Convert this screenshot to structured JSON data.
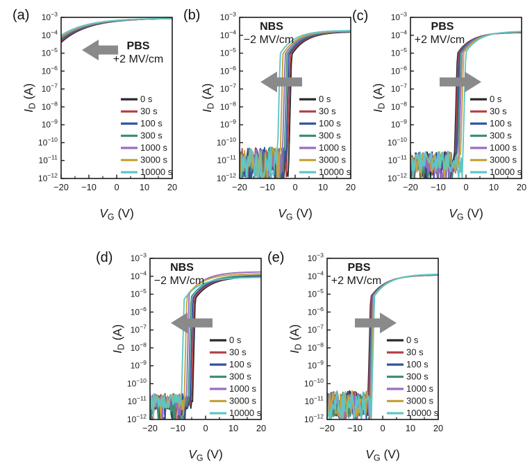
{
  "figure": {
    "background": "#ffffff",
    "text_color": "#1a1a1a",
    "arrow_color": "#8a8a8a"
  },
  "legend": {
    "position": "lower-right-inside",
    "entries": [
      {
        "label": "0 s",
        "color": "#2a2a2a"
      },
      {
        "label": "30 s",
        "color": "#b5434a"
      },
      {
        "label": "100 s",
        "color": "#30519f"
      },
      {
        "label": "300 s",
        "color": "#3f8e74"
      },
      {
        "label": "1000 s",
        "color": "#9a6cc0"
      },
      {
        "label": "3000 s",
        "color": "#c4a33c"
      },
      {
        "label": "10000 s",
        "color": "#5fc6c5"
      }
    ]
  },
  "axes": {
    "x_title": {
      "variable": "V",
      "subscript": "G",
      "unit": " (V)"
    },
    "y_title": {
      "variable": "I",
      "subscript": "D",
      "unit": " (A)"
    },
    "x_range": [
      -20,
      20
    ],
    "x_major_ticks": [
      -20,
      -10,
      0,
      10,
      20
    ],
    "x_minor_ticks": [
      -15,
      -5,
      5,
      15
    ],
    "y_scale": "log10",
    "y_log10_range": [
      -12,
      -3
    ],
    "y_tick_exponents": [
      -3,
      -4,
      -5,
      -6,
      -7,
      -8,
      -9,
      -10,
      -11,
      -12
    ]
  },
  "chart_data": [
    {
      "panel_label": "(a)",
      "type": "line",
      "stress_condition": {
        "line1": "PBS",
        "line2": "+2 MV/cm"
      },
      "shift_arrow_direction": "left",
      "curve_model": {
        "kind": "depletion",
        "decay_tau_V": 9.5
      },
      "series": [
        {
          "name": "0 s",
          "color": "#2a2a2a",
          "on_log10": -3.05,
          "decay_amp": 1.35
        },
        {
          "name": "30 s",
          "color": "#b5434a",
          "on_log10": -3.05,
          "decay_amp": 1.28
        },
        {
          "name": "100 s",
          "color": "#30519f",
          "on_log10": -3.05,
          "decay_amp": 1.22
        },
        {
          "name": "300 s",
          "color": "#3f8e74",
          "on_log10": -3.05,
          "decay_amp": 1.15
        },
        {
          "name": "1000 s",
          "color": "#9a6cc0",
          "on_log10": -3.05,
          "decay_amp": 1.09
        },
        {
          "name": "3000 s",
          "color": "#c4a33c",
          "on_log10": -3.05,
          "decay_amp": 1.02
        },
        {
          "name": "10000 s",
          "color": "#5fc6c5",
          "on_log10": -3.05,
          "decay_amp": 0.95
        }
      ]
    },
    {
      "panel_label": "(b)",
      "type": "line",
      "stress_condition": {
        "line1": "NBS",
        "line2": "−2 MV/cm"
      },
      "shift_arrow_direction": "left",
      "curve_model": {
        "kind": "enhancement",
        "ss_dec_per_V": 6,
        "sat_amp": 1.6,
        "sat_tau_V": 5.2,
        "floor_log10": -11.2,
        "floor_noise_amp": 0.95,
        "floor_spike_prob": 0.08,
        "floor_spike_depth": 0.9
      },
      "series": [
        {
          "name": "0 s",
          "color": "#2a2a2a",
          "vth_V": -2.4,
          "on_log10": -3.8
        },
        {
          "name": "30 s",
          "color": "#b5434a",
          "vth_V": -2.9,
          "on_log10": -3.79
        },
        {
          "name": "100 s",
          "color": "#30519f",
          "vth_V": -3.4,
          "on_log10": -3.78
        },
        {
          "name": "300 s",
          "color": "#3f8e74",
          "vth_V": -4.0,
          "on_log10": -3.77
        },
        {
          "name": "1000 s",
          "color": "#9a6cc0",
          "vth_V": -4.7,
          "on_log10": -3.76
        },
        {
          "name": "3000 s",
          "color": "#c4a33c",
          "vth_V": -5.5,
          "on_log10": -3.75
        },
        {
          "name": "10000 s",
          "color": "#5fc6c5",
          "vth_V": -6.5,
          "on_log10": -3.73
        }
      ]
    },
    {
      "panel_label": "(c)",
      "type": "line",
      "stress_condition": {
        "line1": "PBS",
        "line2": "+2 MV/cm"
      },
      "shift_arrow_direction": "right",
      "curve_model": {
        "kind": "enhancement",
        "ss_dec_per_V": 5.5,
        "sat_amp": 1.5,
        "sat_tau_V": 5.0,
        "floor_log10": -11.1,
        "floor_noise_amp": 0.6,
        "floor_spike_prob": 0.12,
        "floor_spike_depth": 0.8
      },
      "series": [
        {
          "name": "0 s",
          "color": "#2a2a2a",
          "vth_V": -4.3,
          "on_log10": -3.84
        },
        {
          "name": "30 s",
          "color": "#b5434a",
          "vth_V": -4.0,
          "on_log10": -3.83
        },
        {
          "name": "100 s",
          "color": "#30519f",
          "vth_V": -3.6,
          "on_log10": -3.82
        },
        {
          "name": "300 s",
          "color": "#3f8e74",
          "vth_V": -3.2,
          "on_log10": -3.81
        },
        {
          "name": "1000 s",
          "color": "#9a6cc0",
          "vth_V": -2.7,
          "on_log10": -3.8
        },
        {
          "name": "3000 s",
          "color": "#c4a33c",
          "vth_V": -2.1,
          "on_log10": -3.79
        },
        {
          "name": "10000 s",
          "color": "#5fc6c5",
          "vth_V": -1.3,
          "on_log10": -3.77
        }
      ]
    },
    {
      "panel_label": "(d)",
      "type": "line",
      "stress_condition": {
        "line1": "NBS",
        "line2": "−2 MV/cm"
      },
      "shift_arrow_direction": "left",
      "curve_model": {
        "kind": "enhancement",
        "ss_dec_per_V": 6,
        "sat_amp": 1.5,
        "sat_tau_V": 5.5,
        "floor_log10": -11.0,
        "floor_noise_amp": 0.45,
        "floor_spike_prob": 0.12,
        "floor_spike_depth": 1.1
      },
      "series": [
        {
          "name": "0 s",
          "color": "#2a2a2a",
          "vth_V": -4.8,
          "on_log10": -4.02
        },
        {
          "name": "30 s",
          "color": "#b5434a",
          "vth_V": -5.2,
          "on_log10": -4.0
        },
        {
          "name": "100 s",
          "color": "#30519f",
          "vth_V": -5.7,
          "on_log10": -3.98
        },
        {
          "name": "300 s",
          "color": "#3f8e74",
          "vth_V": -6.3,
          "on_log10": -3.94
        },
        {
          "name": "1000 s",
          "color": "#9a6cc0",
          "vth_V": -7.0,
          "on_log10": -3.75
        },
        {
          "name": "3000 s",
          "color": "#c4a33c",
          "vth_V": -7.8,
          "on_log10": -3.86
        },
        {
          "name": "10000 s",
          "color": "#5fc6c5",
          "vth_V": -8.8,
          "on_log10": -4.06
        }
      ]
    },
    {
      "panel_label": "(e)",
      "type": "line",
      "stress_condition": {
        "line1": "PBS",
        "line2": "+2 MV/cm"
      },
      "shift_arrow_direction": "right",
      "curve_model": {
        "kind": "enhancement",
        "ss_dec_per_V": 6,
        "sat_amp": 1.5,
        "sat_tau_V": 5.5,
        "floor_log10": -11.15,
        "floor_noise_amp": 0.75,
        "floor_spike_prob": 0.1,
        "floor_spike_depth": 0.8
      },
      "series": [
        {
          "name": "0 s",
          "color": "#2a2a2a",
          "vth_V": -5.4,
          "on_log10": -3.92
        },
        {
          "name": "30 s",
          "color": "#b5434a",
          "vth_V": -5.2,
          "on_log10": -3.91
        },
        {
          "name": "100 s",
          "color": "#30519f",
          "vth_V": -5.0,
          "on_log10": -3.9
        },
        {
          "name": "300 s",
          "color": "#3f8e74",
          "vth_V": -4.8,
          "on_log10": -3.9
        },
        {
          "name": "1000 s",
          "color": "#9a6cc0",
          "vth_V": -4.6,
          "on_log10": -3.89
        },
        {
          "name": "3000 s",
          "color": "#c4a33c",
          "vth_V": -4.35,
          "on_log10": -3.88
        },
        {
          "name": "10000 s",
          "color": "#5fc6c5",
          "vth_V": -4.05,
          "on_log10": -3.87
        }
      ]
    }
  ]
}
